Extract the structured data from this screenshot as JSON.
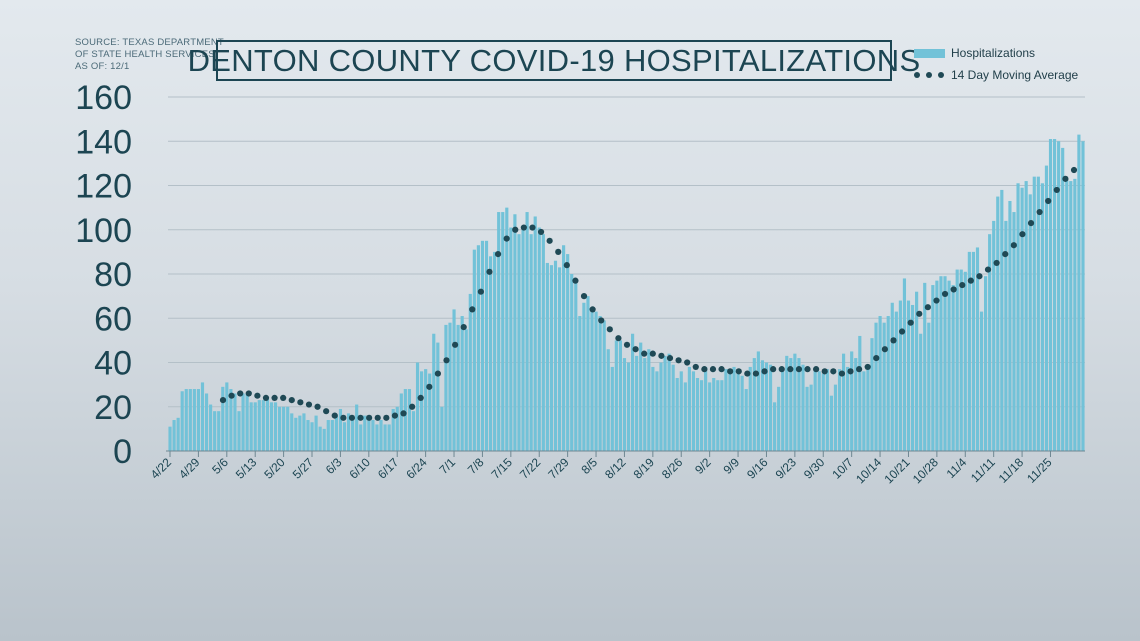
{
  "source": {
    "line1": "SOURCE: TEXAS DEPARTMENT",
    "line2": "OF STATE HEALTH SERVICES",
    "line3": "AS OF: 12/1"
  },
  "colors": {
    "bar": "#72c2d8",
    "dots": "#1f4955",
    "axis_text": "#1c4552",
    "grid": "#b4c0c8"
  },
  "chart_data": {
    "type": "bar",
    "title": "DENTON COUNTY COVID-19 HOSPITALIZATIONS",
    "start_date": "4/22",
    "ylim": [
      0,
      160
    ],
    "y_ticks": [
      0,
      20,
      40,
      60,
      80,
      100,
      120,
      140,
      160
    ],
    "x_ticks": [
      "4/22",
      "4/29",
      "5/6",
      "5/13",
      "5/20",
      "5/27",
      "6/3",
      "6/10",
      "6/17",
      "6/24",
      "7/1",
      "7/8",
      "7/15",
      "7/22",
      "7/29",
      "8/5",
      "8/12",
      "8/19",
      "8/26",
      "9/2",
      "9/9",
      "9/16",
      "9/23",
      "9/30",
      "10/7",
      "10/14",
      "10/21",
      "10/28",
      "11/4",
      "11/11",
      "11/18",
      "11/25"
    ],
    "grid": true,
    "legend_position": "top-right",
    "series": [
      {
        "name": "Hospitalizations",
        "kind": "bar",
        "values": [
          11,
          14,
          15,
          27,
          28,
          28,
          28,
          28,
          31,
          26,
          21,
          18,
          18,
          29,
          31,
          28,
          26,
          18,
          26,
          26,
          22,
          22,
          23,
          23,
          24,
          22,
          22,
          20,
          20,
          20,
          17,
          15,
          16,
          17,
          14,
          13,
          16,
          11,
          10,
          14,
          14,
          16,
          19,
          13,
          17,
          15,
          21,
          12,
          16,
          16,
          14,
          12,
          14,
          12,
          12,
          19,
          20,
          26,
          28,
          28,
          18,
          40,
          36,
          37,
          35,
          53,
          49,
          20,
          57,
          58,
          64,
          57,
          61,
          55,
          71,
          91,
          93,
          95,
          95,
          88,
          90,
          108,
          108,
          110,
          101,
          107,
          98,
          100,
          108,
          98,
          106,
          101,
          98,
          85,
          84,
          86,
          83,
          93,
          89,
          80,
          78,
          61,
          67,
          70,
          63,
          63,
          61,
          59,
          46,
          38,
          50,
          50,
          42,
          40,
          53,
          43,
          49,
          42,
          46,
          38,
          36,
          40,
          43,
          44,
          39,
          33,
          36,
          31,
          38,
          36,
          33,
          32,
          38,
          31,
          33,
          32,
          32,
          37,
          37,
          38,
          36,
          34,
          28,
          38,
          42,
          45,
          41,
          40,
          39,
          22,
          29,
          37,
          43,
          42,
          44,
          42,
          39,
          29,
          30,
          37,
          36,
          35,
          37,
          25,
          30,
          37,
          44,
          38,
          45,
          42,
          52,
          36,
          39,
          51,
          58,
          61,
          58,
          61,
          67,
          63,
          68,
          78,
          68,
          66,
          72,
          53,
          76,
          58,
          75,
          77,
          79,
          79,
          77,
          75,
          82,
          82,
          81,
          90,
          90,
          92,
          63,
          79,
          98,
          104,
          115,
          118,
          104,
          113,
          108,
          121,
          119,
          122,
          116,
          124,
          124,
          121,
          129,
          141,
          141,
          140,
          137,
          123,
          122,
          123,
          143,
          140
        ]
      },
      {
        "name": "14 Day Moving Average",
        "kind": "dots",
        "values": [
          23,
          25,
          26,
          26,
          25,
          24,
          24,
          24,
          23,
          22,
          21,
          20,
          18,
          16,
          15,
          15,
          15,
          15,
          15,
          15,
          16,
          17,
          20,
          24,
          29,
          35,
          41,
          48,
          56,
          64,
          72,
          81,
          89,
          96,
          100,
          101,
          101,
          99,
          95,
          90,
          84,
          77,
          70,
          64,
          59,
          55,
          51,
          48,
          46,
          44,
          44,
          43,
          42,
          41,
          40,
          38,
          37,
          37,
          37,
          36,
          36,
          35,
          35,
          36,
          37,
          37,
          37,
          37,
          37,
          37,
          36,
          36,
          35,
          36,
          37,
          38,
          42,
          46,
          50,
          54,
          58,
          62,
          65,
          68,
          71,
          73,
          75,
          77,
          79,
          82,
          85,
          89,
          93,
          98,
          103,
          108,
          113,
          118,
          123,
          127
        ]
      }
    ]
  }
}
